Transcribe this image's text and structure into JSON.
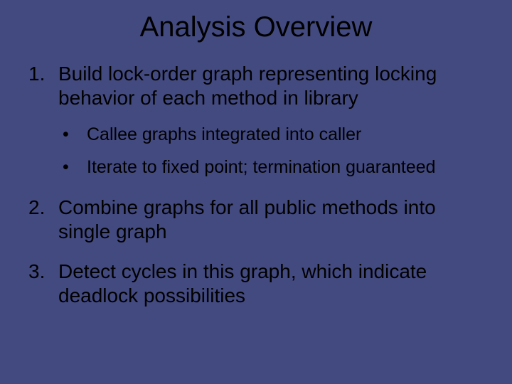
{
  "slide": {
    "background_color": "#434a80",
    "title_color": "#000000",
    "body_color": "#000000",
    "title_fontsize": 40,
    "body_fontsize": 28,
    "sub_fontsize": 25,
    "title": "Analysis Overview",
    "items": [
      {
        "text": "Build lock-order graph representing locking behavior of each method in library",
        "sub": [
          "Callee graphs integrated into caller",
          "Iterate to fixed point; termination guaranteed"
        ]
      },
      {
        "text": "Combine graphs for all public methods into single graph",
        "sub": []
      },
      {
        "text": "Detect cycles in this graph, which indicate deadlock possibilities",
        "sub": []
      }
    ]
  }
}
